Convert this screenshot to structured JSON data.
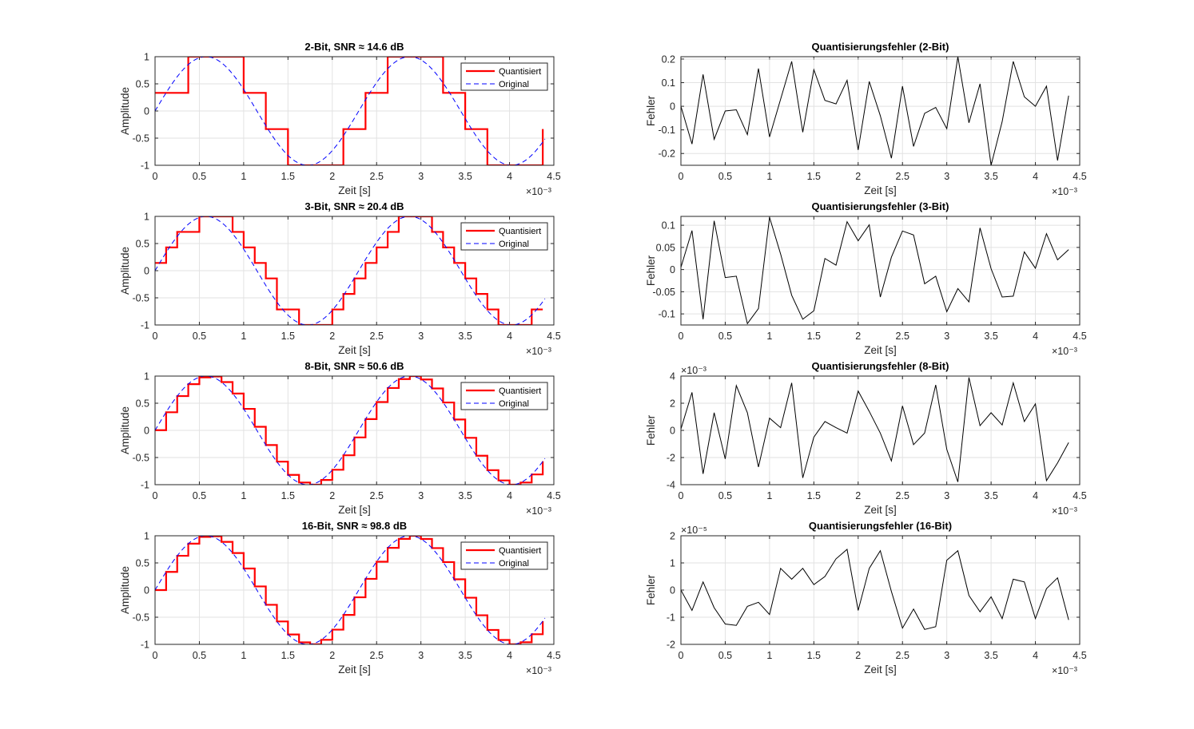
{
  "figure": {
    "background": "#ffffff"
  },
  "chart_data": [
    {
      "type": "line",
      "title": "2-Bit,  SNR ≈ 14.6 dB",
      "xlabel": "Zeit [s]",
      "ylabel": "Amplitude",
      "x_exponent": "×10⁻³",
      "xlim": [
        0,
        4.5
      ],
      "ylim": [
        -1,
        1
      ],
      "xticks": [
        "0",
        "0.5",
        "1",
        "1.5",
        "2",
        "2.5",
        "3",
        "3.5",
        "4",
        "4.5"
      ],
      "yticks": [
        "-1",
        "-0.5",
        "0",
        "0.5",
        "1"
      ],
      "grid": true,
      "legend": "top-right",
      "series": [
        {
          "name": "Quantisiert",
          "color": "#ff0000",
          "style": "stairs",
          "bits": 2
        },
        {
          "name": "Original",
          "color": "#0000ff",
          "style": "dashed",
          "function": "sin(2*pi*435*t)"
        }
      ]
    },
    {
      "type": "line",
      "title": "Quantisierungsfehler (2-Bit)",
      "xlabel": "Zeit [s]",
      "ylabel": "Fehler",
      "x_exponent": "×10⁻³",
      "xlim": [
        0,
        4.5
      ],
      "ylim": [
        -0.25,
        0.21
      ],
      "xticks": [
        "0",
        "0.5",
        "1",
        "1.5",
        "2",
        "2.5",
        "3",
        "3.5",
        "4",
        "4.5"
      ],
      "yticks": [
        "-0.2",
        "-0.1",
        "0",
        "0.1",
        "0.2"
      ],
      "grid": true,
      "series": [
        {
          "color": "#000000",
          "x": [
            0,
            0.125,
            0.25,
            0.375,
            0.5,
            0.625,
            0.75,
            0.875,
            1.0,
            1.125,
            1.25,
            1.375,
            1.5,
            1.625,
            1.75,
            1.875,
            2.0,
            2.125,
            2.25,
            2.375,
            2.5,
            2.625,
            2.75,
            2.875,
            3.0,
            3.125,
            3.25,
            3.375,
            3.5,
            3.625,
            3.75,
            3.875,
            4.0,
            4.125,
            4.25,
            4.375
          ],
          "values": [
            0.0,
            -0.16,
            0.135,
            -0.14,
            -0.02,
            -0.015,
            -0.12,
            0.16,
            -0.13,
            0.03,
            0.19,
            -0.11,
            0.155,
            0.025,
            0.01,
            0.11,
            -0.185,
            0.105,
            -0.04,
            -0.22,
            0.085,
            -0.17,
            -0.03,
            -0.005,
            -0.095,
            0.21,
            -0.07,
            0.095,
            -0.25,
            -0.065,
            0.19,
            0.04,
            0.0,
            0.085,
            -0.23,
            0.045
          ]
        }
      ]
    },
    {
      "type": "line",
      "title": "3-Bit,  SNR ≈ 20.4 dB",
      "xlabel": "Zeit [s]",
      "ylabel": "Amplitude",
      "x_exponent": "×10⁻³",
      "xlim": [
        0,
        4.5
      ],
      "ylim": [
        -1,
        1
      ],
      "xticks": [
        "0",
        "0.5",
        "1",
        "1.5",
        "2",
        "2.5",
        "3",
        "3.5",
        "4",
        "4.5"
      ],
      "yticks": [
        "-1",
        "-0.5",
        "0",
        "0.5",
        "1"
      ],
      "grid": true,
      "legend": "top-right",
      "series": [
        {
          "name": "Quantisiert",
          "color": "#ff0000",
          "style": "stairs",
          "bits": 3
        },
        {
          "name": "Original",
          "color": "#0000ff",
          "style": "dashed",
          "function": "sin(2*pi*435*t)"
        }
      ]
    },
    {
      "type": "line",
      "title": "Quantisierungsfehler (3-Bit)",
      "xlabel": "Zeit [s]",
      "ylabel": "Fehler",
      "x_exponent": "×10⁻³",
      "xlim": [
        0,
        4.5
      ],
      "ylim": [
        -0.125,
        0.12
      ],
      "xticks": [
        "0",
        "0.5",
        "1",
        "1.5",
        "2",
        "2.5",
        "3",
        "3.5",
        "4",
        "4.5"
      ],
      "yticks": [
        "-0.1",
        "-0.05",
        "0",
        "0.05",
        "0.1"
      ],
      "grid": true,
      "series": [
        {
          "color": "#000000",
          "x": [
            0,
            0.125,
            0.25,
            0.375,
            0.5,
            0.625,
            0.75,
            0.875,
            1.0,
            1.125,
            1.25,
            1.375,
            1.5,
            1.625,
            1.75,
            1.875,
            2.0,
            2.125,
            2.25,
            2.375,
            2.5,
            2.625,
            2.75,
            2.875,
            3.0,
            3.125,
            3.25,
            3.375,
            3.5,
            3.625,
            3.75,
            3.875,
            4.0,
            4.125,
            4.25,
            4.375
          ],
          "values": [
            0.005,
            0.088,
            -0.112,
            0.11,
            -0.018,
            -0.015,
            -0.122,
            -0.088,
            0.118,
            0.035,
            -0.058,
            -0.112,
            -0.093,
            0.025,
            0.01,
            0.108,
            0.065,
            0.101,
            -0.062,
            0.028,
            0.087,
            0.078,
            -0.032,
            -0.015,
            -0.095,
            -0.043,
            -0.073,
            0.094,
            0.002,
            -0.062,
            -0.06,
            0.04,
            0.003,
            0.081,
            0.022,
            0.045
          ]
        }
      ]
    },
    {
      "type": "line",
      "title": "8-Bit,  SNR ≈ 50.6 dB",
      "xlabel": "Zeit [s]",
      "ylabel": "Amplitude",
      "x_exponent": "×10⁻³",
      "xlim": [
        0,
        4.5
      ],
      "ylim": [
        -1,
        1
      ],
      "xticks": [
        "0",
        "0.5",
        "1",
        "1.5",
        "2",
        "2.5",
        "3",
        "3.5",
        "4",
        "4.5"
      ],
      "yticks": [
        "-1",
        "-0.5",
        "0",
        "0.5",
        "1"
      ],
      "grid": true,
      "legend": "top-right",
      "series": [
        {
          "name": "Quantisiert",
          "color": "#ff0000",
          "style": "stairs",
          "bits": 8
        },
        {
          "name": "Original",
          "color": "#0000ff",
          "style": "dashed",
          "function": "sin(2*pi*435*t)"
        }
      ]
    },
    {
      "type": "line",
      "title": "Quantisierungsfehler (8-Bit)",
      "xlabel": "Zeit [s]",
      "ylabel": "Fehler",
      "x_exponent": "×10⁻³",
      "y_exponent": "×10⁻³",
      "xlim": [
        0,
        4.5
      ],
      "ylim": [
        -4,
        4
      ],
      "xticks": [
        "0",
        "0.5",
        "1",
        "1.5",
        "2",
        "2.5",
        "3",
        "3.5",
        "4",
        "4.5"
      ],
      "yticks": [
        "-4",
        "-2",
        "0",
        "2",
        "4"
      ],
      "grid": true,
      "series": [
        {
          "color": "#000000",
          "x": [
            0,
            0.125,
            0.25,
            0.375,
            0.5,
            0.625,
            0.75,
            0.875,
            1.0,
            1.125,
            1.25,
            1.375,
            1.5,
            1.625,
            1.75,
            1.875,
            2.0,
            2.125,
            2.25,
            2.375,
            2.5,
            2.625,
            2.75,
            2.875,
            3.0,
            3.125,
            3.25,
            3.375,
            3.5,
            3.625,
            3.75,
            3.875,
            4.0,
            4.125,
            4.25,
            4.375
          ],
          "values": [
            0.1,
            2.8,
            -3.2,
            1.3,
            -2.1,
            3.3,
            1.3,
            -2.7,
            0.9,
            0.2,
            3.5,
            -3.5,
            -0.5,
            0.65,
            0.2,
            -0.2,
            2.9,
            1.4,
            -0.2,
            -2.25,
            1.8,
            -1.05,
            -0.2,
            3.35,
            -1.4,
            -3.8,
            3.9,
            0.35,
            1.3,
            0.4,
            3.5,
            0.65,
            1.95,
            -3.7,
            -2.4,
            -0.9
          ]
        }
      ]
    },
    {
      "type": "line",
      "title": "16-Bit,  SNR ≈ 98.8 dB",
      "xlabel": "Zeit [s]",
      "ylabel": "Amplitude",
      "x_exponent": "×10⁻³",
      "xlim": [
        0,
        4.5
      ],
      "ylim": [
        -1,
        1
      ],
      "xticks": [
        "0",
        "0.5",
        "1",
        "1.5",
        "2",
        "2.5",
        "3",
        "3.5",
        "4",
        "4.5"
      ],
      "yticks": [
        "-1",
        "-0.5",
        "0",
        "0.5",
        "1"
      ],
      "grid": true,
      "legend": "top-right",
      "series": [
        {
          "name": "Quantisiert",
          "color": "#ff0000",
          "style": "stairs",
          "bits": 16
        },
        {
          "name": "Original",
          "color": "#0000ff",
          "style": "dashed",
          "function": "sin(2*pi*435*t)"
        }
      ]
    },
    {
      "type": "line",
      "title": "Quantisierungsfehler (16-Bit)",
      "xlabel": "Zeit [s]",
      "ylabel": "Fehler",
      "x_exponent": "×10⁻³",
      "y_exponent": "×10⁻⁵",
      "xlim": [
        0,
        4.5
      ],
      "ylim": [
        -2,
        2
      ],
      "xticks": [
        "0",
        "0.5",
        "1",
        "1.5",
        "2",
        "2.5",
        "3",
        "3.5",
        "4",
        "4.5"
      ],
      "yticks": [
        "-2",
        "-1",
        "0",
        "1",
        "2"
      ],
      "grid": true,
      "series": [
        {
          "color": "#000000",
          "x": [
            0,
            0.125,
            0.25,
            0.375,
            0.5,
            0.625,
            0.75,
            0.875,
            1.0,
            1.125,
            1.25,
            1.375,
            1.5,
            1.625,
            1.75,
            1.875,
            2.0,
            2.125,
            2.25,
            2.375,
            2.5,
            2.625,
            2.75,
            2.875,
            3.0,
            3.125,
            3.25,
            3.375,
            3.5,
            3.625,
            3.75,
            3.875,
            4.0,
            4.125,
            4.25,
            4.375
          ],
          "values": [
            0.0,
            -0.75,
            0.3,
            -0.65,
            -1.25,
            -1.3,
            -0.6,
            -0.45,
            -0.9,
            0.8,
            0.4,
            0.8,
            0.2,
            0.5,
            1.15,
            1.5,
            -0.75,
            0.8,
            1.45,
            -0.05,
            -1.4,
            -0.7,
            -1.45,
            -1.35,
            1.1,
            1.45,
            -0.2,
            -0.8,
            -0.25,
            -1.05,
            0.4,
            0.3,
            -1.05,
            0.05,
            0.45,
            -1.1
          ]
        }
      ]
    }
  ]
}
